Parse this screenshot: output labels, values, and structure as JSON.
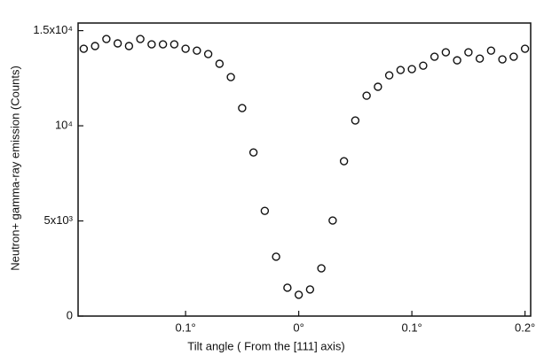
{
  "chart_data": {
    "type": "scatter",
    "x_label": "Tilt angle ( From the  [111]  axis)",
    "y_label": "Neutron+ gamma-ray emission (Counts)",
    "x": [
      -0.19,
      -0.18,
      -0.17,
      -0.16,
      -0.15,
      -0.14,
      -0.13,
      -0.12,
      -0.11,
      -0.1,
      -0.09,
      -0.08,
      -0.07,
      -0.06,
      -0.05,
      -0.04,
      -0.03,
      -0.02,
      -0.01,
      0,
      0.01,
      0.02,
      0.03,
      0.04,
      0.05,
      0.06,
      0.07,
      0.08,
      0.09,
      0.1,
      0.11,
      0.12,
      0.13,
      0.14,
      0.15,
      0.16,
      0.17,
      0.18,
      0.19,
      0.2
    ],
    "values": [
      14050,
      14190,
      14560,
      14330,
      14190,
      14560,
      14280,
      14280,
      14280,
      14050,
      13950,
      13770,
      13260,
      12560,
      10930,
      8600,
      5530,
      3120,
      1490,
      1120,
      1400,
      2510,
      5020,
      8140,
      10280,
      11580,
      12050,
      12650,
      12930,
      12980,
      13160,
      13630,
      13860,
      13440,
      13860,
      13530,
      13950,
      13490,
      13630,
      14050
    ],
    "color": "#111111",
    "xlim": [
      -0.195,
      0.205
    ],
    "ylim": [
      0,
      15400
    ],
    "xticks": [
      {
        "value": -0.1,
        "label": "0.1°"
      },
      {
        "value": 0,
        "label": "0°"
      },
      {
        "value": 0.1,
        "label": "0.1°"
      },
      {
        "value": 0.2,
        "label": "0.2°"
      }
    ],
    "yticks": [
      0,
      {
        "value": 5000,
        "label": "5x10³"
      },
      {
        "value": 10000,
        "label": "10⁴"
      },
      {
        "value": 15000,
        "label": "1.5x10⁴"
      }
    ]
  }
}
